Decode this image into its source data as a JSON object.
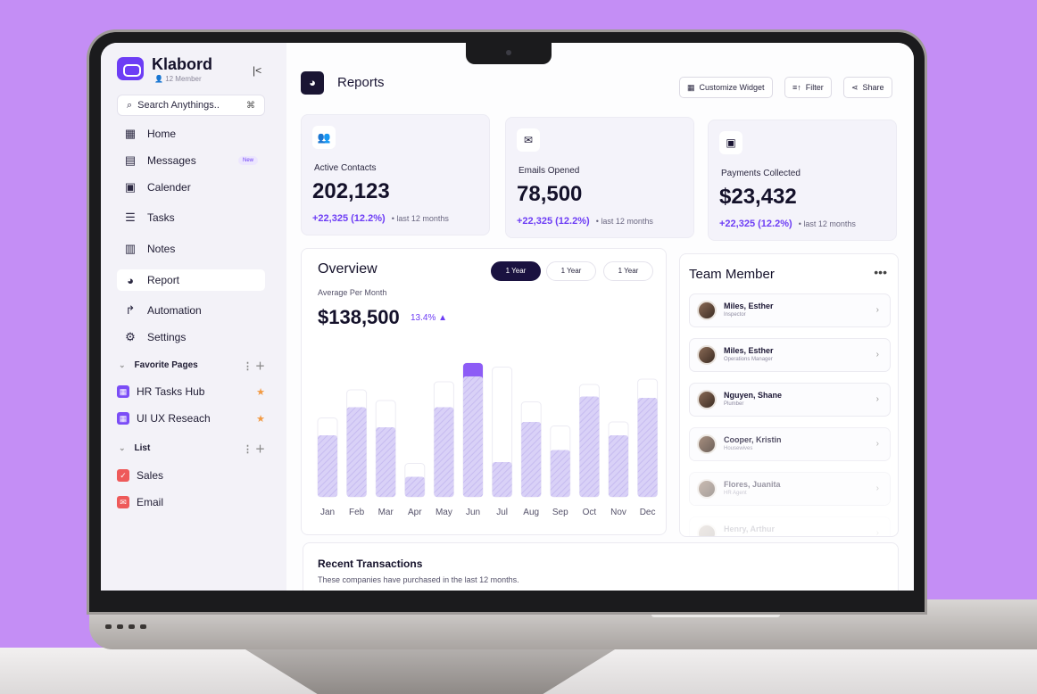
{
  "app": {
    "brand": "Klabord",
    "members": "12 Member",
    "collapse_icon": "collapse-icon"
  },
  "search": {
    "placeholder": "Search Anythings..",
    "shortcut": "⌘"
  },
  "nav": {
    "home": "Home",
    "messages": "Messages",
    "messages_badge": "New",
    "calender": "Calender",
    "tasks": "Tasks",
    "notes": "Notes",
    "report": "Report",
    "automation": "Automation",
    "settings": "Settings"
  },
  "favorites": {
    "heading": "Favorite Pages",
    "items": [
      "HR Tasks Hub",
      "UI UX Reseach"
    ]
  },
  "list": {
    "heading": "List",
    "items": [
      "Sales",
      "Email"
    ]
  },
  "header": {
    "title": "Reports",
    "customize": "Customize Widget",
    "filter": "Filter",
    "share": "Share"
  },
  "stats": [
    {
      "label": "Active Contacts",
      "value": "202,123",
      "change": "+22,325 (12.2%)",
      "period": "last 12 months"
    },
    {
      "label": "Emails Opened",
      "value": "78,500",
      "change": "+22,325 (12.2%)",
      "period": "last 12 months"
    },
    {
      "label": "Payments Collected",
      "value": "$23,432",
      "change": "+22,325 (12.2%)",
      "period": "last 12 months"
    }
  ],
  "overview": {
    "title": "Overview",
    "subtitle": "Average Per Month",
    "value": "$138,500",
    "change": "13.4% ▲",
    "periods": [
      "1 Year",
      "1 Year",
      "1 Year"
    ]
  },
  "chart_data": {
    "type": "bar",
    "categories": [
      "Jan",
      "Feb",
      "Mar",
      "Apr",
      "May",
      "Jun",
      "Jul",
      "Aug",
      "Sep",
      "Oct",
      "Nov",
      "Dec"
    ],
    "series": [
      {
        "values": [
          0.46,
          0.67,
          0.52,
          0.15,
          0.67,
          0.9,
          0.26,
          0.56,
          0.35,
          0.75,
          0.46,
          0.74
        ]
      },
      {
        "values": [
          0.59,
          0.8,
          0.72,
          0.25,
          0.86,
          1.0,
          0.97,
          0.71,
          0.53,
          0.84,
          0.56,
          0.88
        ]
      }
    ],
    "highlight_index": 5,
    "colors": {
      "bar": "#d9d1f7",
      "highlight": "#8d5cf6",
      "track": "#ffffff"
    },
    "ylim": [
      0,
      1
    ],
    "grid": false
  },
  "team": {
    "title": "Team Member",
    "members": [
      {
        "name": "Miles, Esther",
        "role": "Inspector"
      },
      {
        "name": "Miles, Esther",
        "role": "Operations Manager"
      },
      {
        "name": "Nguyen, Shane",
        "role": "Plumber"
      },
      {
        "name": "Cooper, Kristin",
        "role": "Housewives"
      },
      {
        "name": "Flores, Juanita",
        "role": "HR Agent"
      },
      {
        "name": "Henry, Arthur",
        "role": ""
      }
    ]
  },
  "recent": {
    "title": "Recent Transactions",
    "subtitle": "These companies have purchased in the last 12 months."
  }
}
